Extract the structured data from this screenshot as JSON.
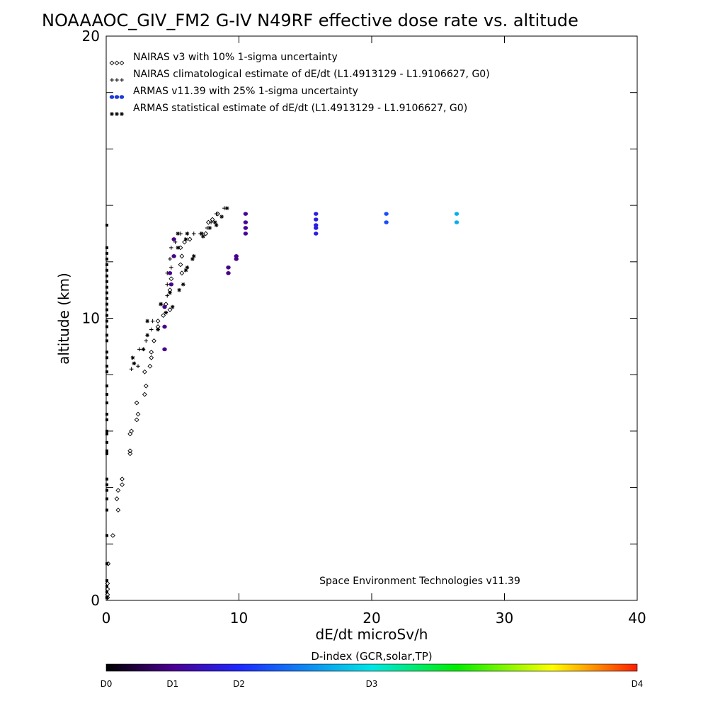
{
  "chart_data": {
    "type": "scatter",
    "title": "NOAAAOC_GIV_FM2 G-IV   N49RF  effective dose rate vs. altitude",
    "xlabel": "dE/dt microSv/h",
    "ylabel": "altitude (km)",
    "xlim": [
      0,
      40
    ],
    "ylim": [
      0,
      20
    ],
    "x_ticks": [
      "0",
      "10",
      "20",
      "30",
      "40"
    ],
    "y_ticks": [
      "0",
      "10",
      "20"
    ],
    "legend_position": "top-left",
    "annotation": "Space Environment Technologies v11.39",
    "series": [
      {
        "name": "NAIRAS v3 with 10% 1-sigma uncertainty",
        "marker": "diamond",
        "color": "#000000",
        "points": [
          [
            0.1,
            0.6
          ],
          [
            0.1,
            0.4
          ],
          [
            0.1,
            0.2
          ],
          [
            0.1,
            0.1
          ],
          [
            0.15,
            1.3
          ],
          [
            0.5,
            2.3
          ],
          [
            0.9,
            3.2
          ],
          [
            0.8,
            3.6
          ],
          [
            1.2,
            4.1
          ],
          [
            0.9,
            3.9
          ],
          [
            1.2,
            4.3
          ],
          [
            1.8,
            5.2
          ],
          [
            1.8,
            5.3
          ],
          [
            1.8,
            5.9
          ],
          [
            1.9,
            6.0
          ],
          [
            2.3,
            6.4
          ],
          [
            2.4,
            6.6
          ],
          [
            2.3,
            7.0
          ],
          [
            2.9,
            7.3
          ],
          [
            3.0,
            7.6
          ],
          [
            2.9,
            8.1
          ],
          [
            3.3,
            8.3
          ],
          [
            3.4,
            8.6
          ],
          [
            3.4,
            8.8
          ],
          [
            3.6,
            9.2
          ],
          [
            3.9,
            9.7
          ],
          [
            3.9,
            9.9
          ],
          [
            4.3,
            10.1
          ],
          [
            4.8,
            10.3
          ],
          [
            4.5,
            10.5
          ],
          [
            4.8,
            11.0
          ],
          [
            4.9,
            11.4
          ],
          [
            5.7,
            11.6
          ],
          [
            5.6,
            11.9
          ],
          [
            5.7,
            12.2
          ],
          [
            5.6,
            12.5
          ],
          [
            5.9,
            12.7
          ],
          [
            6.3,
            12.8
          ],
          [
            7.5,
            13.0
          ],
          [
            7.7,
            13.4
          ],
          [
            8.0,
            13.5
          ],
          [
            8.4,
            13.7
          ]
        ]
      },
      {
        "name": "NAIRAS climatological estimate of dE/dt (L1.4913129 - L1.9106627, G0)",
        "marker": "plus",
        "color": "#000000",
        "points": [
          [
            1.9,
            8.2
          ],
          [
            2.4,
            8.3
          ],
          [
            2.5,
            8.9
          ],
          [
            3.0,
            9.2
          ],
          [
            3.4,
            9.6
          ],
          [
            3.5,
            9.9
          ],
          [
            4.2,
            10.5
          ],
          [
            4.6,
            10.8
          ],
          [
            4.6,
            11.2
          ],
          [
            4.6,
            11.6
          ],
          [
            4.9,
            11.8
          ],
          [
            4.8,
            12.1
          ],
          [
            4.9,
            12.5
          ],
          [
            5.2,
            12.7
          ],
          [
            5.6,
            13.0
          ],
          [
            6.6,
            13.0
          ],
          [
            7.1,
            13.0
          ],
          [
            7.6,
            13.2
          ],
          [
            7.9,
            13.4
          ],
          [
            8.3,
            13.7
          ],
          [
            8.9,
            13.9
          ]
        ]
      },
      {
        "name": "ARMAS v11.39 with 25% 1-sigma uncertainty",
        "marker": "dot",
        "points": [
          [
            4.4,
            8.9,
            0.95
          ],
          [
            4.4,
            9.7,
            0.95
          ],
          [
            4.4,
            10.4,
            0.95
          ],
          [
            4.9,
            11.2,
            0.95
          ],
          [
            4.8,
            11.6,
            0.95
          ],
          [
            5.1,
            12.2,
            0.95
          ],
          [
            5.1,
            12.8,
            0.95
          ],
          [
            9.2,
            11.6,
            0.95
          ],
          [
            9.2,
            11.8,
            0.95
          ],
          [
            9.8,
            12.1,
            0.95
          ],
          [
            9.8,
            12.2,
            0.95
          ],
          [
            10.5,
            13.0,
            1.1
          ],
          [
            10.5,
            13.2,
            1.1
          ],
          [
            10.5,
            13.4,
            1.1
          ],
          [
            10.5,
            13.7,
            1.1
          ],
          [
            15.8,
            13.0,
            1.75
          ],
          [
            15.8,
            13.2,
            1.75
          ],
          [
            15.8,
            13.3,
            1.75
          ],
          [
            15.8,
            13.5,
            1.75
          ],
          [
            15.8,
            13.7,
            1.75
          ],
          [
            21.1,
            13.4,
            2.2
          ],
          [
            21.1,
            13.7,
            2.2
          ],
          [
            26.4,
            13.4,
            2.7
          ],
          [
            26.4,
            13.7,
            2.7
          ]
        ]
      },
      {
        "name": "ARMAS statistical estimate of dE/dt (L1.4913129 - L1.9106627, G0)",
        "marker": "asterisk",
        "color": "#000000",
        "points": [
          [
            2.1,
            8.4
          ],
          [
            2.0,
            8.6
          ],
          [
            2.8,
            8.9
          ],
          [
            3.1,
            9.4
          ],
          [
            3.1,
            9.9
          ],
          [
            3.9,
            9.6
          ],
          [
            4.1,
            10.5
          ],
          [
            4.5,
            10.2
          ],
          [
            5.0,
            10.4
          ],
          [
            4.8,
            10.9
          ],
          [
            5.5,
            11.0
          ],
          [
            5.8,
            11.2
          ],
          [
            6.0,
            11.7
          ],
          [
            6.1,
            11.8
          ],
          [
            6.6,
            12.2
          ],
          [
            6.5,
            12.1
          ],
          [
            5.4,
            12.5
          ],
          [
            6.0,
            12.8
          ],
          [
            5.4,
            13.0
          ],
          [
            6.1,
            13.0
          ],
          [
            7.3,
            12.9
          ],
          [
            7.2,
            13.0
          ],
          [
            7.8,
            13.2
          ],
          [
            8.3,
            13.3
          ],
          [
            8.2,
            13.4
          ],
          [
            8.7,
            13.6
          ],
          [
            9.1,
            13.9
          ]
        ]
      }
    ],
    "left_edge_points": [
      0.1,
      0.3,
      0.5,
      0.7,
      1.3,
      2.3,
      3.2,
      3.6,
      3.9,
      4.1,
      4.3,
      5.2,
      5.3,
      5.6,
      5.9,
      6.0,
      6.4,
      6.6,
      7.0,
      7.3,
      7.6,
      8.1,
      8.3,
      8.6,
      8.8,
      9.2,
      9.4,
      9.7,
      9.9,
      10.1,
      10.3,
      10.5,
      10.7,
      10.9,
      11.1,
      11.3,
      11.5,
      11.7,
      11.9,
      12.1,
      12.3,
      12.5,
      13.3
    ],
    "colorbar": {
      "title": "D-index (GCR,solar,TP)",
      "labels": [
        {
          "text": "D0",
          "value": 0
        },
        {
          "text": "D1",
          "value": 1
        },
        {
          "text": "D2",
          "value": 2
        },
        {
          "text": "D3",
          "value": 3
        },
        {
          "text": "D4",
          "value": 4
        }
      ],
      "label_axis_values": [
        0,
        1,
        2,
        3,
        4
      ],
      "label_fraction": [
        0.0,
        0.125,
        0.25,
        0.5,
        1.0
      ],
      "colors": [
        "#000000",
        "#4b0090",
        "#1e28ff",
        "#00e6e6",
        "#00ee00",
        "#ffff00",
        "#ff1e00"
      ]
    }
  }
}
